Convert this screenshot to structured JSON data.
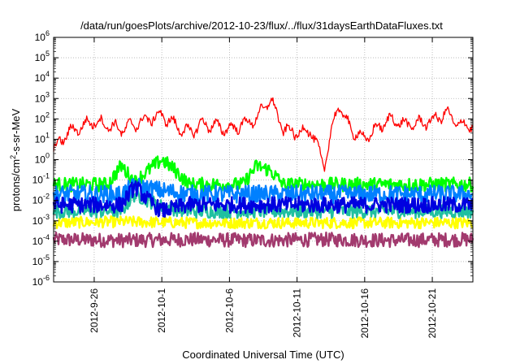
{
  "chart_data": {
    "type": "line",
    "title": "/data/run/goesPlots/archive/2012-10-23/flux/../flux/31daysEarthDataFluxes.txt",
    "xlabel": "Coordinated Universal Time (UTC)",
    "ylabel": {
      "base": "protons/cm",
      "sup": "2",
      "rest": "-s-sr-MeV"
    },
    "y_scale": "log",
    "ylim": [
      1e-06,
      1000000.0
    ],
    "xlim": [
      "2012-09-23",
      "2012-10-24"
    ],
    "grid": true,
    "legend": "none",
    "x_ticks": [
      "2012-9-26",
      "2012-10-1",
      "2012-10-6",
      "2012-10-11",
      "2012-10-16",
      "2012-10-21"
    ],
    "y_ticks": [
      {
        "exp": -6
      },
      {
        "exp": -5
      },
      {
        "exp": -4
      },
      {
        "exp": -3
      },
      {
        "exp": -2
      },
      {
        "exp": -1
      },
      {
        "exp": 0
      },
      {
        "exp": 1
      },
      {
        "exp": 2
      },
      {
        "exp": 3
      },
      {
        "exp": 4
      },
      {
        "exp": 5
      },
      {
        "exp": 6
      }
    ],
    "series": [
      {
        "color": "#a23a6e",
        "x": [
          "2012-09-23",
          "2012-09-28",
          "2012-10-03",
          "2012-10-08",
          "2012-10-13",
          "2012-10-18",
          "2012-10-23"
        ],
        "y": [
          0.00012,
          0.00011,
          0.00012,
          0.00011,
          0.00012,
          0.00011,
          0.00012
        ]
      },
      {
        "color": "#ffff00",
        "x": [
          "2012-09-23",
          "2012-09-28",
          "2012-10-03",
          "2012-10-08",
          "2012-10-13",
          "2012-10-18",
          "2012-10-23"
        ],
        "y": [
          0.0008,
          0.0009,
          0.0008,
          0.0008,
          0.0008,
          0.0008,
          0.0008
        ]
      },
      {
        "color": "#20c0a0",
        "x": [
          "2012-09-23",
          "2012-09-28",
          "2012-09-29",
          "2012-10-01",
          "2012-10-03",
          "2012-10-08",
          "2012-10-13",
          "2012-10-18",
          "2012-10-23"
        ],
        "y": [
          0.003,
          0.003,
          0.02,
          0.005,
          0.003,
          0.003,
          0.003,
          0.003,
          0.003
        ]
      },
      {
        "color": "#00ff00",
        "x": [
          "2012-09-23",
          "2012-09-27",
          "2012-09-28",
          "2012-09-29",
          "2012-09-30",
          "2012-10-01",
          "2012-10-02",
          "2012-10-03",
          "2012-10-07",
          "2012-10-08",
          "2012-10-09",
          "2012-10-10",
          "2012-10-13",
          "2012-10-18",
          "2012-10-23"
        ],
        "y": [
          0.06,
          0.06,
          0.5,
          0.08,
          0.3,
          1.0,
          0.3,
          0.06,
          0.06,
          0.5,
          0.3,
          0.06,
          0.06,
          0.06,
          0.06
        ]
      },
      {
        "color": "#0080ff",
        "x": [
          "2012-09-23",
          "2012-09-28",
          "2012-09-29",
          "2012-10-01",
          "2012-10-03",
          "2012-10-08",
          "2012-10-13",
          "2012-10-18",
          "2012-10-23"
        ],
        "y": [
          0.02,
          0.02,
          0.05,
          0.03,
          0.02,
          0.02,
          0.02,
          0.02,
          0.02
        ]
      },
      {
        "color": "#0000e0",
        "x": [
          "2012-09-23",
          "2012-09-28",
          "2012-09-29",
          "2012-09-30",
          "2012-10-01",
          "2012-10-03",
          "2012-10-08",
          "2012-10-13",
          "2012-10-18",
          "2012-10-23"
        ],
        "y": [
          0.006,
          0.006,
          0.05,
          0.01,
          0.003,
          0.006,
          0.006,
          0.006,
          0.006,
          0.006
        ]
      },
      {
        "color": "#ff0000",
        "x": [
          "2012-09-23",
          "2012-09-24",
          "2012-09-26",
          "2012-09-28",
          "2012-09-30",
          "2012-10-01",
          "2012-10-02",
          "2012-10-03",
          "2012-10-04",
          "2012-10-06",
          "2012-10-08",
          "2012-10-09",
          "2012-10-10",
          "2012-10-11",
          "2012-10-12",
          "2012-10-13",
          "2012-10-14",
          "2012-10-15",
          "2012-10-16",
          "2012-10-17",
          "2012-10-18",
          "2012-10-19",
          "2012-10-20",
          "2012-10-21",
          "2012-10-22",
          "2012-10-23"
        ],
        "y": [
          3,
          20,
          80,
          30,
          100,
          150,
          50,
          20,
          60,
          30,
          100,
          1000,
          30,
          20,
          30,
          0.5,
          500,
          30,
          10,
          40,
          100,
          50,
          60,
          80,
          200,
          50
        ]
      }
    ]
  }
}
